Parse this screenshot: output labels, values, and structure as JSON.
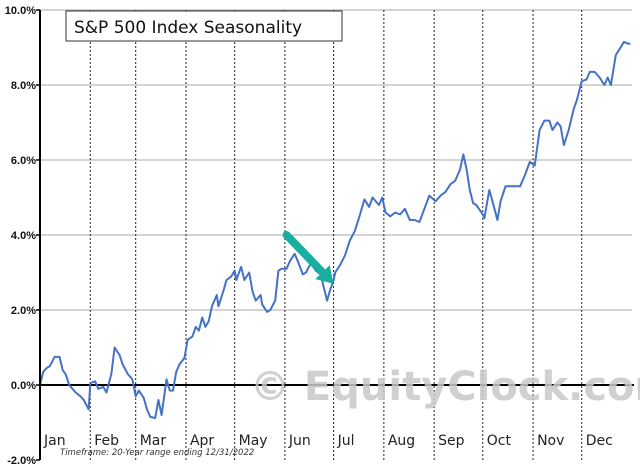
{
  "chart_data": {
    "type": "line",
    "title": "S&P 500 Index Seasonality",
    "footnote": "Timeframe: 20-Year range ending 12/31/2022",
    "watermark": "© EquityClock.com",
    "xlabel": "",
    "ylabel": "",
    "xlim": [
      0,
      365
    ],
    "ylim": [
      -2,
      10
    ],
    "y_ticks": [
      "10.0%",
      "8.0%",
      "6.0%",
      "4.0%",
      "2.0%",
      "0.0%",
      "-2.0%"
    ],
    "y_tick_values": [
      10,
      8,
      6,
      4,
      2,
      0,
      -2
    ],
    "months": [
      "Jan",
      "Feb",
      "Mar",
      "Apr",
      "May",
      "Jun",
      "Jul",
      "Aug",
      "Sep",
      "Oct",
      "Nov",
      "Dec"
    ],
    "month_start_days": [
      0,
      31,
      59,
      90,
      120,
      151,
      181,
      212,
      243,
      273,
      304,
      334
    ],
    "grid": true,
    "line_color": "#4472c4",
    "arrow_color": "#1aae9f",
    "annotation": {
      "type": "arrow",
      "from": [
        152,
        4.0
      ],
      "to": [
        181,
        2.7
      ]
    },
    "series": [
      {
        "x": [
          0,
          2,
          4,
          6,
          9,
          12,
          14,
          16,
          18,
          22,
          25,
          27,
          30,
          31,
          34,
          36,
          39,
          41,
          44,
          46,
          49,
          51,
          54,
          57,
          59,
          61,
          64,
          66,
          68,
          71,
          73,
          75,
          78,
          80,
          82,
          84,
          86,
          89,
          91,
          94,
          96,
          98,
          100,
          102,
          104,
          106,
          109,
          110,
          113,
          115,
          118,
          120,
          121,
          124,
          126,
          129,
          131,
          133,
          136,
          137,
          140,
          142,
          145,
          147,
          149,
          152,
          154,
          157,
          159,
          162,
          164,
          167,
          170,
          173,
          175,
          177,
          179,
          181,
          182,
          185,
          188,
          191,
          194,
          197,
          200,
          203,
          205,
          209,
          211,
          213,
          216,
          219,
          222,
          225,
          228,
          231,
          234,
          237,
          240,
          244,
          247,
          250,
          253,
          256,
          259,
          261,
          263,
          265,
          267,
          269,
          273,
          274,
          277,
          279,
          282,
          284,
          287,
          290,
          293,
          296,
          299,
          302,
          305,
          308,
          311,
          314,
          316,
          319,
          321,
          323,
          326,
          329,
          331,
          334,
          337,
          339,
          342,
          345,
          348,
          350,
          352,
          355,
          358,
          360,
          363,
          364
        ],
        "y": [
          0,
          0.35,
          0.45,
          0.5,
          0.75,
          0.75,
          0.4,
          0.27,
          0,
          -0.2,
          -0.3,
          -0.4,
          -0.65,
          0.05,
          0.1,
          -0.1,
          -0.05,
          -0.2,
          0.3,
          1.0,
          0.8,
          0.55,
          0.3,
          0.15,
          -0.3,
          -0.15,
          -0.35,
          -0.65,
          -0.85,
          -0.88,
          -0.4,
          -0.8,
          0.15,
          -0.15,
          -0.15,
          0.35,
          0.55,
          0.72,
          1.2,
          1.3,
          1.55,
          1.45,
          1.8,
          1.55,
          1.7,
          2.1,
          2.4,
          2.1,
          2.5,
          2.8,
          2.9,
          3.05,
          2.8,
          3.15,
          2.8,
          3.0,
          2.5,
          2.25,
          2.4,
          2.15,
          1.95,
          2.0,
          2.25,
          3.05,
          3.1,
          3.1,
          3.3,
          3.5,
          3.3,
          2.95,
          3.0,
          3.25,
          3.05,
          2.95,
          2.6,
          2.25,
          2.55,
          2.8,
          3.0,
          3.2,
          3.45,
          3.85,
          4.1,
          4.5,
          4.95,
          4.75,
          5.0,
          4.8,
          5.0,
          4.6,
          4.5,
          4.6,
          4.55,
          4.7,
          4.4,
          4.4,
          4.35,
          4.7,
          5.05,
          4.9,
          5.05,
          5.15,
          5.35,
          5.45,
          5.75,
          6.15,
          5.75,
          5.2,
          4.85,
          4.8,
          4.55,
          4.45,
          5.2,
          4.9,
          4.4,
          4.9,
          5.3,
          5.3,
          5.3,
          5.3,
          5.6,
          5.95,
          5.85,
          6.8,
          7.05,
          7.05,
          6.8,
          7.0,
          6.9,
          6.4,
          6.8,
          7.35,
          7.6,
          8.1,
          8.15,
          8.35,
          8.35,
          8.2,
          8.0,
          8.2,
          8.0,
          8.8,
          9.0,
          9.15,
          9.1,
          9.1
        ]
      }
    ]
  }
}
